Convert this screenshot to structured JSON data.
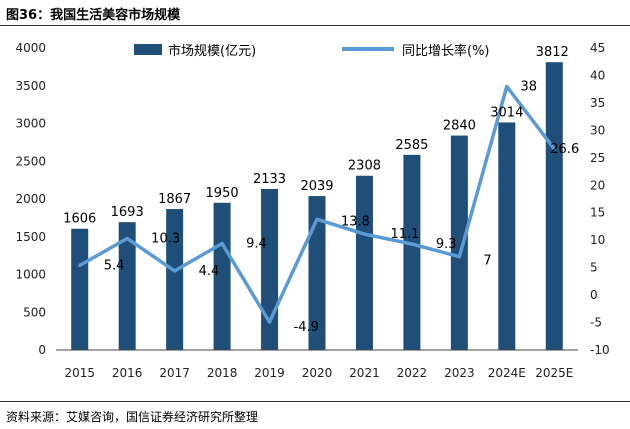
{
  "figure_title": "图36：我国生活美容市场规模",
  "source_note": "资料来源：艾媒咨询，国信证券经济研究所整理",
  "colors": {
    "bar": "#1f4e79",
    "line": "#5b9bd5"
  },
  "chart_data": {
    "type": "bar+line",
    "title": "我国生活美容市场规模",
    "categories": [
      "2015",
      "2016",
      "2017",
      "2018",
      "2019",
      "2020",
      "2021",
      "2022",
      "2023",
      "2024E",
      "2025E"
    ],
    "series": [
      {
        "name": "市场规模(亿元)",
        "type": "bar",
        "axis": "left",
        "values": [
          1606,
          1693,
          1867,
          1950,
          2133,
          2039,
          2308,
          2585,
          2840,
          3014,
          3812
        ],
        "labels": [
          "1606",
          "1693",
          "1867",
          "1950",
          "2133",
          "2039",
          "2308",
          "2585",
          "2840",
          "3014",
          "3812"
        ]
      },
      {
        "name": "同比增长率(%)",
        "type": "line",
        "axis": "right",
        "values": [
          5.4,
          10.3,
          4.4,
          9.4,
          -4.9,
          13.8,
          11.1,
          9.3,
          7,
          38,
          26.6
        ],
        "labels": [
          "5.4",
          "10.3",
          "4.4",
          "9.4",
          "-4.9",
          "13.8",
          "11.1",
          "9.3",
          "7",
          "38",
          "26.6"
        ]
      }
    ],
    "y_left": {
      "min": 0,
      "max": 4000,
      "step": 500,
      "ticks": [
        "0",
        "500",
        "1000",
        "1500",
        "2000",
        "2500",
        "3000",
        "3500",
        "4000"
      ]
    },
    "y_right": {
      "min": -10,
      "max": 45,
      "step": 5,
      "ticks": [
        "-10",
        "-5",
        "0",
        "5",
        "10",
        "15",
        "20",
        "25",
        "30",
        "35",
        "40",
        "45"
      ]
    },
    "legend_position": "top"
  }
}
